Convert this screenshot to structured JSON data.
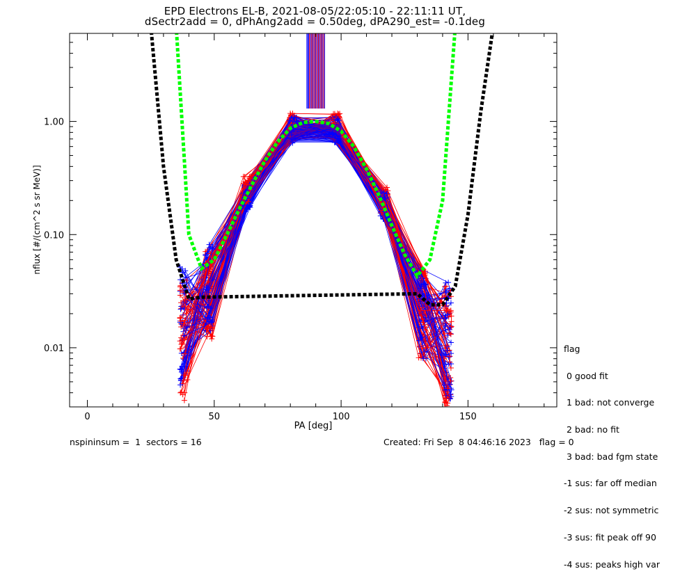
{
  "title_line1": "EPD Electrons EL-B, 2021-08-05/22:05:10 - 22:11:11 UT,",
  "title_line2": "dSectr2add = 0, dPhAng2add = 0.50deg, dPA290_est=  -0.1deg",
  "legend": {
    "heading": "flag",
    "items": [
      " 0 good fit",
      " 1 bad: not converge",
      " 2 bad: no fit",
      " 3 bad: bad fgm state",
      "-1 sus: far off median",
      "-2 sus: not symmetric",
      "-3 sus: fit peak off 90",
      "-4 sus: peaks high var"
    ]
  },
  "footer": {
    "left": "nspininsum =  1  sectors = 16",
    "right": "Created: Fri Sep  8 04:46:16 2023   flag = 0"
  },
  "colors": {
    "data_a": "#ff0000",
    "data_b": "#0000ff",
    "fit_green": "#00ff00",
    "fit_black": "#000000"
  },
  "chart_data": {
    "type": "line",
    "xlabel": "PA [deg]",
    "ylabel": "nflux [#/(cm^2 s sr MeV)]",
    "xlim": [
      -7,
      185
    ],
    "ylim": [
      0.003,
      6
    ],
    "yscale": "log",
    "xticks": [
      0,
      50,
      100,
      150
    ],
    "yticks": [
      0.01,
      0.1,
      1.0
    ],
    "ytick_labels": [
      "0.01",
      "0.10",
      "1.00"
    ],
    "series": [
      {
        "color": "#ff0000",
        "style": "solid+crosses",
        "x": [
          38,
          48,
          63,
          81,
          98,
          117,
          132,
          142
        ],
        "y": [
          0.012,
          0.03,
          0.25,
          0.9,
          0.9,
          0.2,
          0.02,
          0.01
        ]
      },
      {
        "color": "#0000ff",
        "style": "solid+crosses",
        "x": [
          38,
          48,
          63,
          81,
          98,
          117,
          132,
          142
        ],
        "y": [
          0.015,
          0.035,
          0.22,
          0.85,
          0.85,
          0.18,
          0.02,
          0.012
        ]
      },
      {
        "color": "#00ff00",
        "style": "dashed-fit",
        "x": [
          35,
          40,
          45,
          50,
          55,
          60,
          65,
          70,
          75,
          80,
          85,
          90,
          95,
          100,
          105,
          110,
          115,
          120,
          125,
          130,
          135,
          140,
          145
        ],
        "y": [
          7.0,
          0.1,
          0.05,
          0.06,
          0.1,
          0.17,
          0.28,
          0.45,
          0.66,
          0.87,
          0.98,
          1.0,
          0.96,
          0.82,
          0.6,
          0.38,
          0.22,
          0.12,
          0.067,
          0.043,
          0.06,
          0.2,
          7.0
        ]
      },
      {
        "color": "#000000",
        "style": "dashed-fit",
        "x": [
          25,
          30,
          35,
          40,
          45,
          130,
          135,
          140,
          145,
          150,
          155,
          160
        ],
        "y": [
          7.0,
          0.4,
          0.06,
          0.027,
          0.028,
          0.03,
          0.024,
          0.024,
          0.035,
          0.15,
          1.2,
          7.0
        ]
      }
    ]
  }
}
